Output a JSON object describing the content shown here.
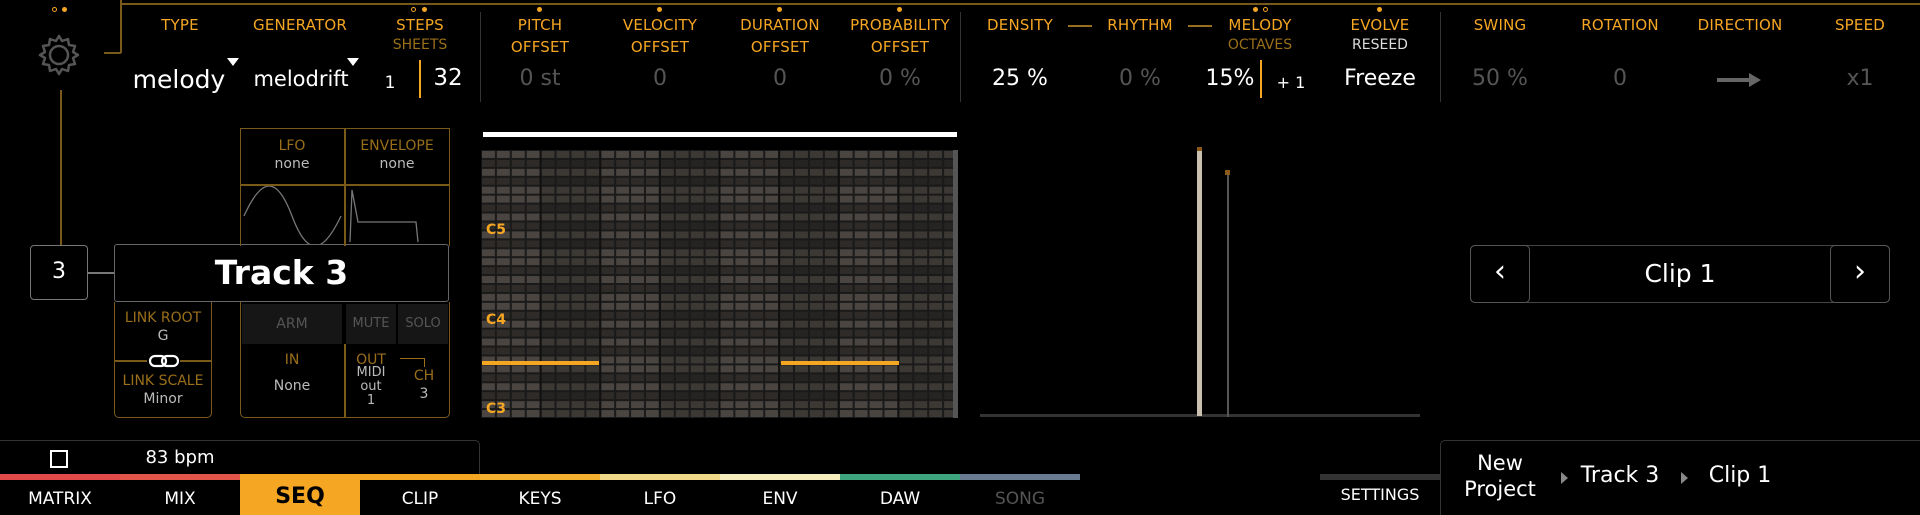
{
  "header": {
    "type": {
      "label": "TYPE",
      "value": "melody"
    },
    "generator": {
      "label": "GENERATOR",
      "value": "melodrift"
    },
    "steps": {
      "label": "STEPS",
      "sub": "SHEETS",
      "value_small": "1",
      "value": "32"
    },
    "pitch_offset": {
      "label1": "PITCH",
      "label2": "OFFSET",
      "value": "0 st"
    },
    "velocity_offset": {
      "label1": "VELOCITY",
      "label2": "OFFSET",
      "value": "0"
    },
    "duration_offset": {
      "label1": "DURATION",
      "label2": "OFFSET",
      "value": "0"
    },
    "probability_offset": {
      "label1": "PROBABILITY",
      "label2": "OFFSET",
      "value": "0 %"
    },
    "density": {
      "label": "DENSITY",
      "value": "25 %"
    },
    "rhythm": {
      "label": "RHYTHM",
      "value": "0 %"
    },
    "melody": {
      "label": "MELODY",
      "sub": "OCTAVES",
      "value": "15%",
      "value2": "+ 1"
    },
    "evolve": {
      "label": "EVOLVE",
      "sub": "RESEED",
      "value": "Freeze"
    },
    "swing": {
      "label": "SWING",
      "value": "50 %"
    },
    "rotation": {
      "label": "ROTATION",
      "value": "0"
    },
    "direction": {
      "label": "DIRECTION",
      "icon": "arrow-right-icon"
    },
    "speed": {
      "label": "SPEED",
      "value": "x1"
    }
  },
  "track": {
    "number": "3",
    "name": "Track 3",
    "lfo": {
      "label": "LFO",
      "value": "none"
    },
    "envelope": {
      "label": "ENVELOPE",
      "value": "none"
    },
    "link_root": {
      "label": "LINK ROOT",
      "value": "G"
    },
    "link_scale": {
      "label": "LINK SCALE",
      "value": "Minor"
    },
    "arm": "ARM",
    "mute": "MUTE",
    "solo": "SOLO",
    "in": {
      "label": "IN",
      "value": "None"
    },
    "out": {
      "label": "OUT",
      "value": "MIDI out 1",
      "line1": "MIDI",
      "line2": "out",
      "line3": "1"
    },
    "ch": {
      "label": "CH",
      "value": "3"
    }
  },
  "piano_roll": {
    "labels": [
      "C5",
      "C4",
      "C3"
    ]
  },
  "clip_nav": {
    "prev": "‹",
    "name": "Clip 1",
    "next": "›"
  },
  "transport": {
    "bpm": "83 bpm"
  },
  "tabs": [
    {
      "label": "MATRIX",
      "color": "#e24a4a"
    },
    {
      "label": "MIX",
      "color": "#e2554a"
    },
    {
      "label": "SEQ",
      "color": "#f5a623",
      "active": true
    },
    {
      "label": "CLIP",
      "color": "#f5a623"
    },
    {
      "label": "KEYS",
      "color": "#f5b030"
    },
    {
      "label": "LFO",
      "color": "#f1d98a"
    },
    {
      "label": "ENV",
      "color": "#f6eebc"
    },
    {
      "label": "DAW",
      "color": "#3ea57e"
    },
    {
      "label": "SONG",
      "color": "#6a7c92"
    }
  ],
  "footer": {
    "settings": "SETTINGS",
    "breadcrumb": [
      "New Project",
      "Track 3",
      "Clip 1"
    ],
    "bc1a": "New",
    "bc1b": "Project"
  }
}
